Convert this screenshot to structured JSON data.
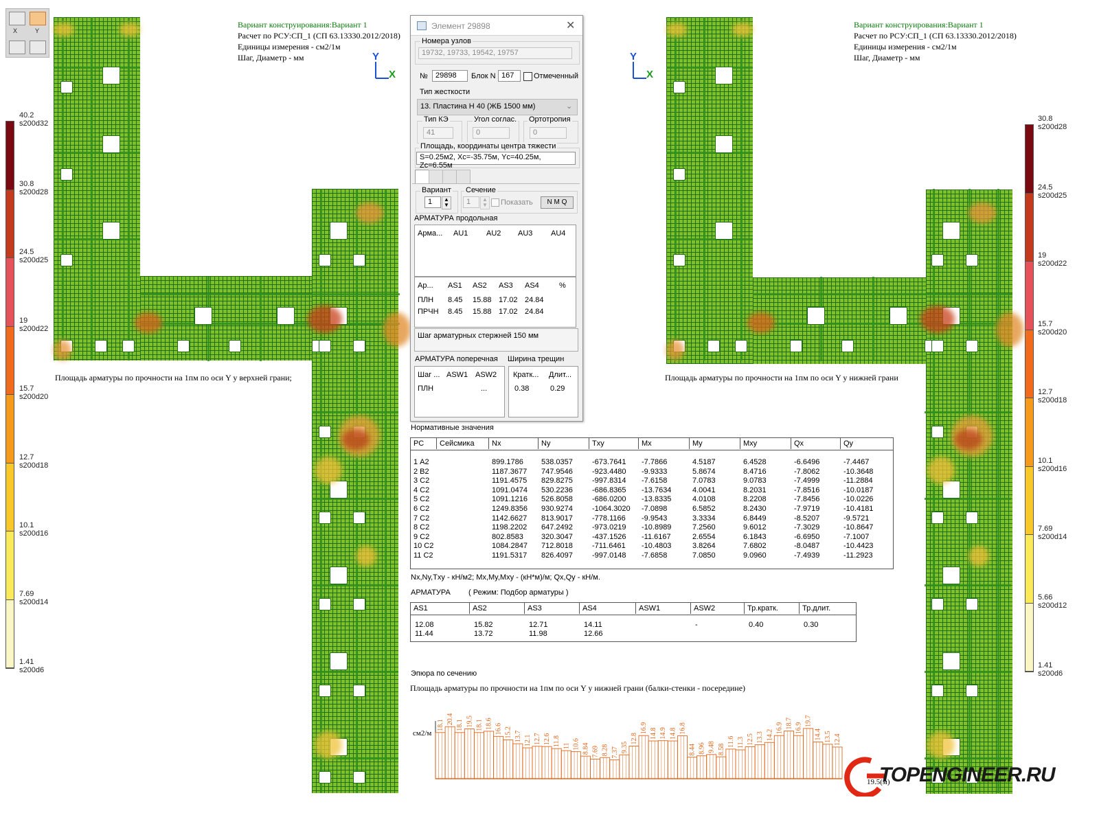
{
  "toolbar": {
    "x_label": "X",
    "y_label": "Y"
  },
  "left_panel": {
    "info": [
      "Вариант конструирования:Вариант 1",
      "Расчет по РСУ:СП_1 (СП 63.13330.2012/2018)",
      "Единицы измерения - см2/1м",
      "Шаг, Диаметр - мм"
    ],
    "caption": "Площадь арматуры по прочности на 1пм по оси Y у верхней грани;",
    "axis_y": "Y",
    "axis_x": "X"
  },
  "right_panel": {
    "info": [
      "Вариант конструирования:Вариант 1",
      "Расчет по РСУ:СП_1 (СП 63.13330.2012/2018)",
      "Единицы измерения - см2/1м",
      "Шаг, Диаметр - мм"
    ],
    "caption": "Площадь арматуры по прочности на 1пм по оси Y у нижней грани",
    "axis_y": "Y",
    "axis_x": "X"
  },
  "left_scale": [
    {
      "value": "40.2",
      "rebar": "s200d32",
      "color": "#7a0a12"
    },
    {
      "value": "30.8",
      "rebar": "s200d28",
      "color": "#c43a1d"
    },
    {
      "value": "24.5",
      "rebar": "s200d25",
      "color": "#e6525a"
    },
    {
      "value": "19",
      "rebar": "s200d22",
      "color": "#f26b1c"
    },
    {
      "value": "15.7",
      "rebar": "s200d20",
      "color": "#f69a1c"
    },
    {
      "value": "12.7",
      "rebar": "s200d18",
      "color": "#f8c72a"
    },
    {
      "value": "10.1",
      "rebar": "s200d16",
      "color": "#faea5a"
    },
    {
      "value": "7.69",
      "rebar": "s200d14",
      "color": "#fbf6c6"
    },
    {
      "value": "1.41",
      "rebar": "s200d6",
      "color": ""
    }
  ],
  "right_scale": [
    {
      "value": "30.8",
      "rebar": "s200d28",
      "color": "#7a0a12"
    },
    {
      "value": "24.5",
      "rebar": "s200d25",
      "color": "#c43a1d"
    },
    {
      "value": "19",
      "rebar": "s200d22",
      "color": "#e6525a"
    },
    {
      "value": "15.7",
      "rebar": "s200d20",
      "color": "#f26b1c"
    },
    {
      "value": "12.7",
      "rebar": "s200d18",
      "color": "#f69a1c"
    },
    {
      "value": "10.1",
      "rebar": "s200d16",
      "color": "#f8c72a"
    },
    {
      "value": "7.69",
      "rebar": "s200d14",
      "color": "#faea5a"
    },
    {
      "value": "5.66",
      "rebar": "s200d12",
      "color": "#fbf6c6"
    },
    {
      "value": "1.41",
      "rebar": "s200d6",
      "color": ""
    }
  ],
  "dialog": {
    "title": "Элемент 29898",
    "nodes_label": "Номера узлов",
    "nodes_value": "19732, 19733, 19542, 19757",
    "num_label": "№",
    "num_value": "29898",
    "block_label": "Блок N",
    "block_value": "167",
    "marked_label": "Отмеченный",
    "stiffness_label": "Тип жесткости",
    "stiffness_value": "13. Пластина  H 40 (ЖБ 1500 мм)",
    "ke_type_label": "Тип КЭ",
    "ke_type_value": "41",
    "angle_label": "Угол соглас.",
    "angle_value": "0",
    "ortho_label": "Ортотропия",
    "ortho_value": "0",
    "area_label": "Площадь, координаты центра тяжести",
    "area_value": "S=0.25м2, Xc=-35.75м, Yc=40.25м, Zc=6.55м",
    "variant_label": "Вариант",
    "variant_value": "1",
    "section_label": "Сечение",
    "section_value": "1",
    "show_label": "Показать",
    "nmq_label": "N M Q",
    "long_rebar_label": "АРМАТУРА продольная",
    "au_headers": [
      "Арма...",
      "AU1",
      "AU2",
      "AU3",
      "AU4"
    ],
    "as_headers": [
      "Ар...",
      "AS1",
      "AS2",
      "AS3",
      "AS4",
      "%"
    ],
    "as_rows": [
      [
        "ПЛН",
        "8.45",
        "15.88",
        "17.02",
        "24.84"
      ],
      [
        "ПРЧН",
        "8.45",
        "15.88",
        "17.02",
        "24.84"
      ]
    ],
    "step_note": "Шаг арматурных стержней 150 мм",
    "trans_rebar_label": "АРМАТУРА поперечная",
    "crack_label": "Ширина трещин",
    "asw_headers": [
      "Шаг ...",
      "ASW1",
      "ASW2"
    ],
    "asw_row": [
      "ПЛН",
      "",
      "..."
    ],
    "crack_headers": [
      "Кратк...",
      "Длит..."
    ],
    "crack_values": [
      "0.38",
      "0.29"
    ]
  },
  "normative": {
    "title": "Нормативные значения",
    "headers": [
      "РС",
      "Сейсмика",
      "Nx",
      "Ny",
      "Txy",
      "Mx",
      "My",
      "Mxy",
      "Qx",
      "Qy"
    ],
    "rows": [
      [
        "1 А2",
        "",
        "899.1786",
        "538.0357",
        "-673.7641",
        "-7.7866",
        "4.5187",
        "6.4528",
        "-6.6496",
        "-7.4467"
      ],
      [
        "2 В2",
        "",
        "1187.3677",
        "747.9546",
        "-923.4480",
        "-9.9333",
        "5.8674",
        "8.4716",
        "-7.8062",
        "-10.3648"
      ],
      [
        "3 С2",
        "",
        "1191.4575",
        "829.8275",
        "-997.8314",
        "-7.6158",
        "7.0783",
        "9.0783",
        "-7.4999",
        "-11.2884"
      ],
      [
        "4 С2",
        "",
        "1091.0474",
        "530.2236",
        "-686.8365",
        "-13.7634",
        "4.0041",
        "8.2031",
        "-7.8516",
        "-10.0187"
      ],
      [
        "5 С2",
        "",
        "1091.1216",
        "526.8058",
        "-686.0200",
        "-13.8335",
        "4.0108",
        "8.2208",
        "-7.8456",
        "-10.0226"
      ],
      [
        "6 С2",
        "",
        "1249.8356",
        "930.9274",
        "-1064.3020",
        "-7.0898",
        "6.5852",
        "8.2430",
        "-7.9719",
        "-10.4181"
      ],
      [
        "7 С2",
        "",
        "1142.6627",
        "813.9017",
        "-778.1166",
        "-9.9543",
        "3.3334",
        "6.8449",
        "-8.5207",
        "-9.5721"
      ],
      [
        "8 С2",
        "",
        "1198.2202",
        "647.2492",
        "-973.0219",
        "-10.8989",
        "7.2560",
        "9.6012",
        "-7.3029",
        "-10.8647"
      ],
      [
        "9 С2",
        "",
        "802.8583",
        "320.3047",
        "-437.1526",
        "-11.6167",
        "2.6554",
        "6.1843",
        "-6.6950",
        "-7.1007"
      ],
      [
        "10 С2",
        "",
        "1084.2847",
        "712.8018",
        "-711.6461",
        "-10.4803",
        "3.8264",
        "7.6802",
        "-8.0487",
        "-10.4423"
      ],
      [
        "11 С2",
        "",
        "1191.5317",
        "826.4097",
        "-997.0148",
        "-7.6858",
        "7.0850",
        "9.0960",
        "-7.4939",
        "-11.2923"
      ]
    ],
    "units": "Nx,Ny,Txy - кН/м2; Mx,My,Mxy - (кН*м)/м; Qx,Qy - кН/м."
  },
  "rebar_result": {
    "title": "АРМАТУРА",
    "mode": "( Режим: Подбор арматуры )",
    "headers": [
      "AS1",
      "AS2",
      "AS3",
      "AS4",
      "ASW1",
      "ASW2",
      "Тр.кратк.",
      "Тр.длит."
    ],
    "row1": [
      "12.08",
      "15.82",
      "12.71",
      "14.11",
      "",
      "-",
      "0.40",
      "0.30"
    ],
    "row2": [
      "11.44",
      "13.72",
      "11.98",
      "12.66",
      "",
      "",
      "",
      ""
    ]
  },
  "section_plot": {
    "title": "Эпюра по сечению",
    "subtitle": "Площадь арматуры по прочности на 1пм по оси Y у нижней грани (балки-стенки - посередине)",
    "ylabel": "см2/м",
    "xlabel": "19.5(м)",
    "labels": [
      "18.1",
      "20.4",
      "18.1",
      "19.5",
      "18.1",
      "18.6",
      "16.6",
      "15.2",
      "13.7",
      "12.1",
      "12.7",
      "12.6",
      "11.8",
      "11",
      "10.6",
      "8.84",
      "7.69",
      "8.28",
      "7.37",
      "9.35",
      "12.8",
      "16.9",
      "14.8",
      "14.9",
      "14.8",
      "16.8",
      "8.44",
      "8.96",
      "9.48",
      "8.58",
      "11.6",
      "11.3",
      "12.5",
      "13.3",
      "14.2",
      "16.9",
      "18.7",
      "16.9",
      "19.7",
      "14.4",
      "13.5",
      "12.4"
    ]
  },
  "chart_data": {
    "type": "bar",
    "title": "Эпюра по сечению",
    "subtitle": "Площадь арматуры по прочности на 1пм по оси Y у нижней грани (балки-стенки - посередине)",
    "ylabel": "см2/м",
    "xlabel": "19.5(м)",
    "values": [
      18.1,
      20.4,
      18.1,
      19.5,
      18.1,
      18.6,
      16.6,
      15.2,
      13.7,
      12.1,
      12.7,
      12.6,
      11.8,
      11,
      10.6,
      8.84,
      7.69,
      8.28,
      7.37,
      9.35,
      12.8,
      16.9,
      14.8,
      14.9,
      14.8,
      16.8,
      8.44,
      8.96,
      9.48,
      8.58,
      11.6,
      11.3,
      12.5,
      13.3,
      14.2,
      16.9,
      18.7,
      16.9,
      19.7,
      14.4,
      13.5,
      12.4
    ],
    "ylim": [
      0,
      21
    ],
    "color": "#e0661a"
  },
  "watermark": "TOPENGINEER.RU"
}
